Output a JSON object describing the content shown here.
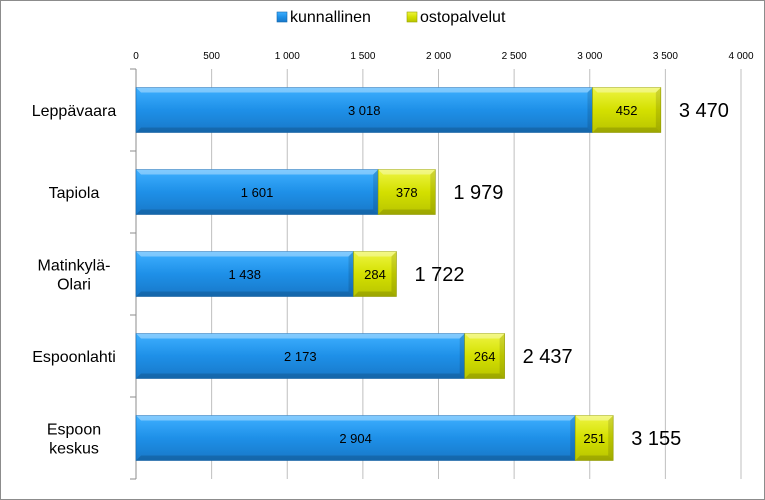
{
  "chart_data": {
    "type": "bar",
    "orientation": "horizontal",
    "stacked": true,
    "categories": [
      "Leppävaara",
      "Tapiola",
      "Matinkylä-Olari",
      "Espoonlahti",
      "Espoon keskus"
    ],
    "category_lines": [
      [
        "Leppävaara"
      ],
      [
        "Tapiola"
      ],
      [
        "Matinkylä-",
        "Olari"
      ],
      [
        "Espoonlahti"
      ],
      [
        "Espoon",
        "keskus"
      ]
    ],
    "series": [
      {
        "name": "kunnallinen",
        "values": [
          3018,
          1601,
          1438,
          2173,
          2904
        ],
        "labels": [
          "3 018",
          "1 601",
          "1 438",
          "2 173",
          "2 904"
        ],
        "color": "#1e90e8"
      },
      {
        "name": "ostopalvelut",
        "values": [
          452,
          378,
          284,
          264,
          251
        ],
        "labels": [
          "452",
          "378",
          "284",
          "264",
          "251"
        ],
        "color": "#d4e000"
      }
    ],
    "totals": [
      3470,
      1979,
      1722,
      2437,
      3155
    ],
    "total_labels": [
      "3 470",
      "1 979",
      "1 722",
      "2 437",
      "3 155"
    ],
    "xlim": [
      0,
      4000
    ],
    "xticks": [
      0,
      500,
      1000,
      1500,
      2000,
      2500,
      3000,
      3500,
      4000
    ],
    "xtick_labels": [
      "0",
      "500",
      "1 000",
      "1 500",
      "2 000",
      "2 500",
      "3 000",
      "3 500",
      "4 000"
    ],
    "x_axis_position": "top",
    "grid": true,
    "legend_position": "top"
  }
}
